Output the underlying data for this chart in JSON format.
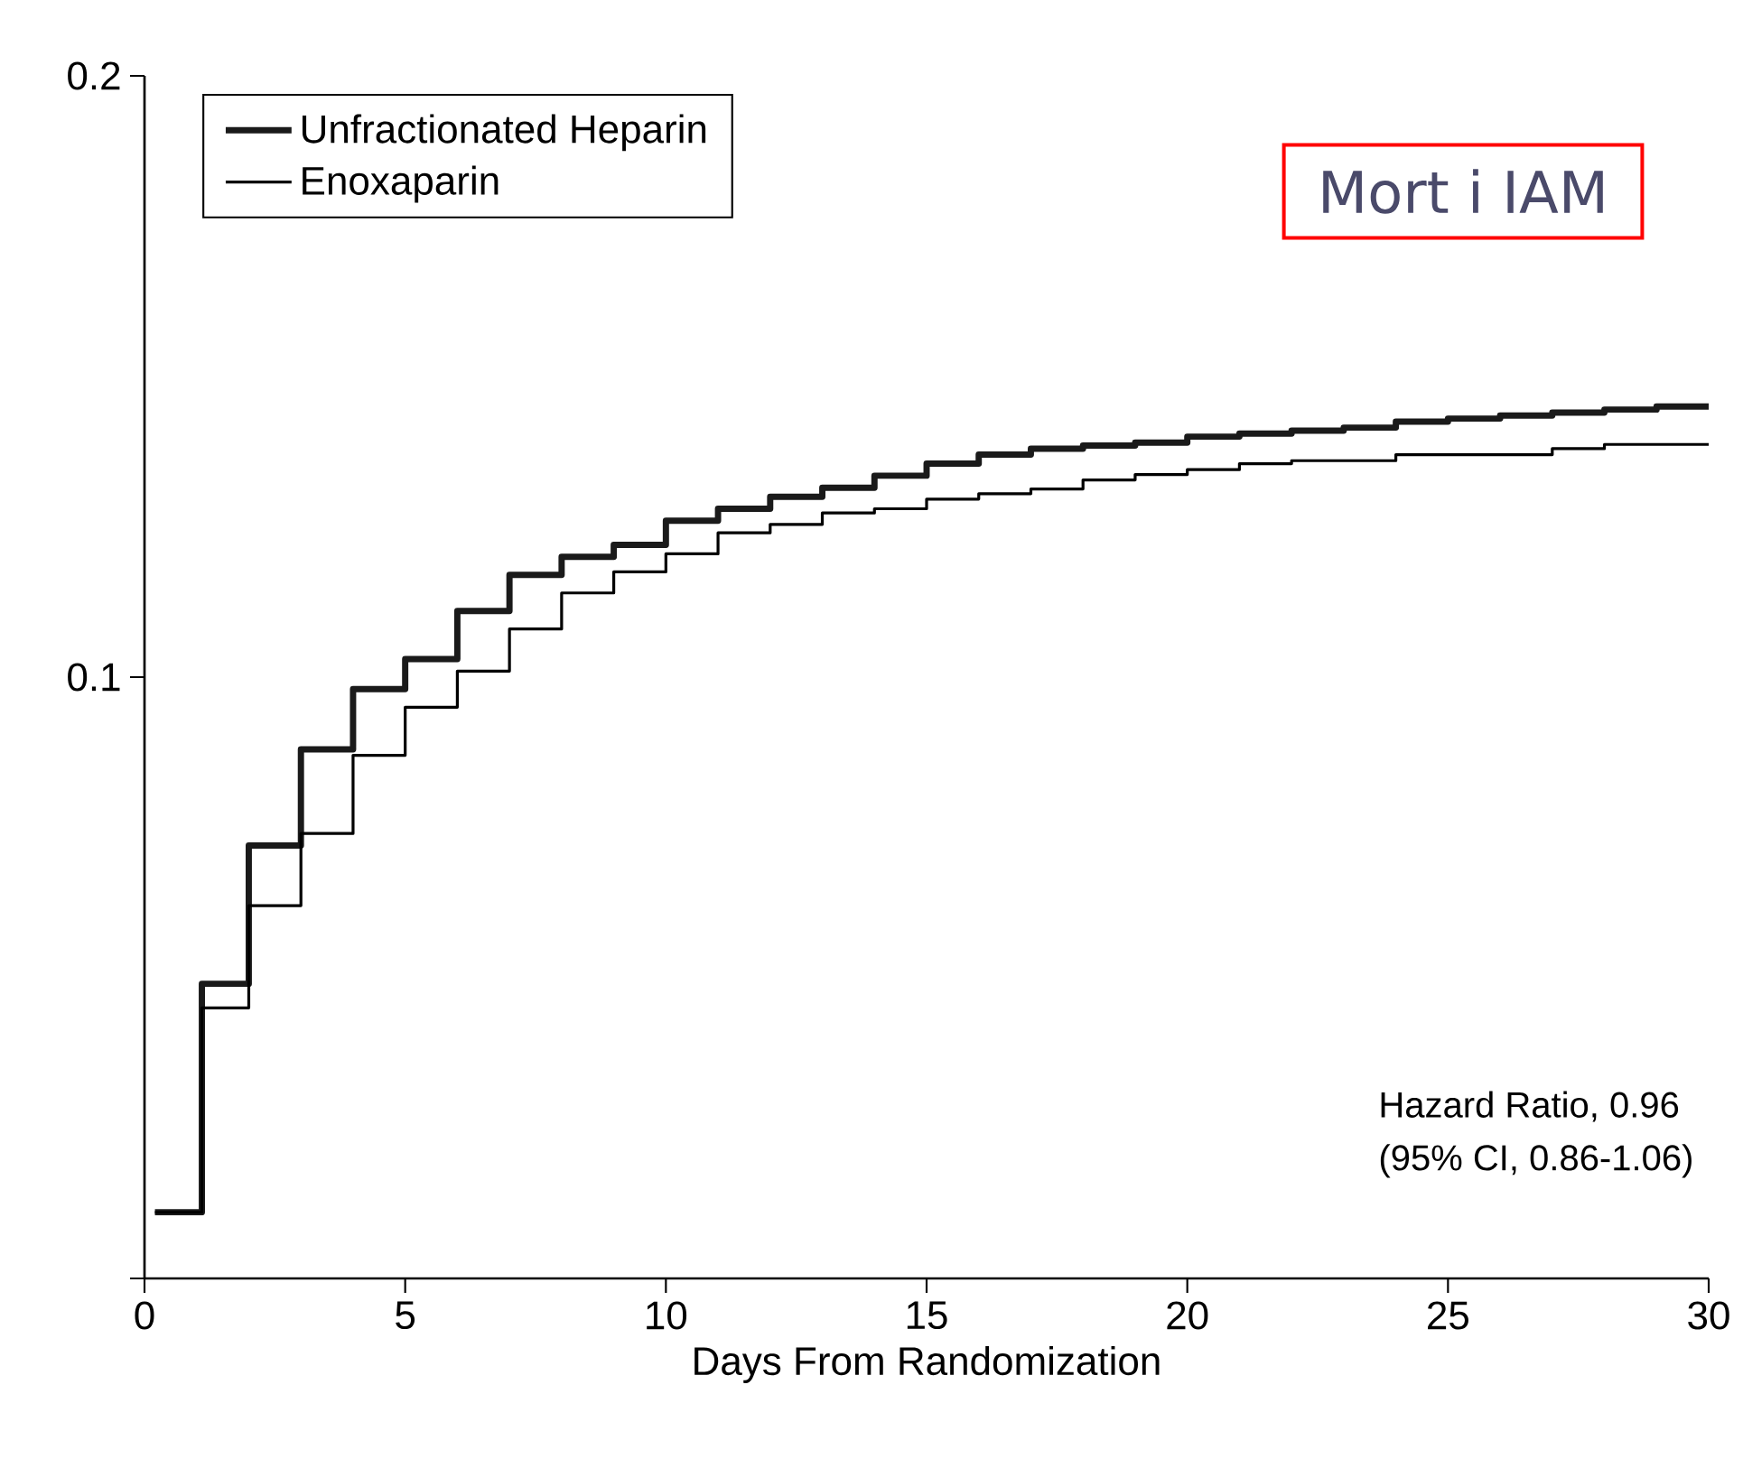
{
  "chart_data": {
    "type": "step",
    "xlabel": "Days From Randomization",
    "xlim": [
      0,
      30
    ],
    "xticks": [
      0,
      5,
      10,
      15,
      20,
      25,
      30
    ],
    "ylim": [
      0,
      0.2
    ],
    "yticks": [
      {
        "value": 0,
        "label": null
      },
      0.1,
      0.2
    ],
    "legend": "top left",
    "annotations": [
      "Mort i IAM",
      "Hazard Ratio, 0.96",
      "(95% CI, 0.86-1.06)"
    ],
    "series": [
      {
        "name": "Unfractionated Heparin",
        "color": "#1a1a1a",
        "x": [
          0.2,
          1.1,
          2,
          3,
          4,
          5,
          6,
          7,
          8,
          9,
          10,
          11,
          12,
          13,
          14,
          15,
          16,
          17,
          18,
          19,
          20,
          21,
          22,
          23,
          24,
          25,
          26,
          27,
          28,
          29,
          30
        ],
        "values": [
          0.011,
          0.049,
          0.072,
          0.088,
          0.098,
          0.103,
          0.111,
          0.117,
          0.12,
          0.122,
          0.126,
          0.128,
          0.13,
          0.1315,
          0.1335,
          0.1355,
          0.137,
          0.138,
          0.1385,
          0.139,
          0.14,
          0.1405,
          0.141,
          0.1415,
          0.1425,
          0.143,
          0.1435,
          0.144,
          0.1445,
          0.145,
          0.145
        ]
      },
      {
        "name": "Enoxaparin",
        "color": "#000000",
        "x": [
          0.2,
          1.1,
          2,
          3,
          4,
          5,
          6,
          7,
          8,
          9,
          10,
          11,
          12,
          13,
          14,
          15,
          16,
          17,
          18,
          19,
          20,
          21,
          22,
          24,
          27,
          28,
          30
        ],
        "values": [
          0.011,
          0.045,
          0.062,
          0.074,
          0.087,
          0.095,
          0.101,
          0.108,
          0.114,
          0.1175,
          0.1205,
          0.124,
          0.1254,
          0.1273,
          0.128,
          0.1296,
          0.1305,
          0.1313,
          0.1328,
          0.1337,
          0.1345,
          0.1355,
          0.136,
          0.137,
          0.138,
          0.1387,
          0.1387
        ]
      }
    ]
  }
}
